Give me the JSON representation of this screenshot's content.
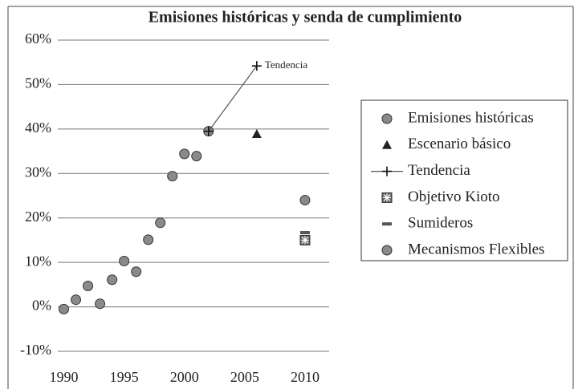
{
  "chart_data": {
    "type": "scatter",
    "title": "Emisiones históricas y senda de cumplimiento",
    "annotation": "Tendencia",
    "xlim": [
      1989.5,
      2012
    ],
    "xticks": [
      1990,
      1995,
      2000,
      2005,
      2010
    ],
    "ylim": [
      -10,
      60
    ],
    "yticks": [
      {
        "value": -10,
        "label": "-10%"
      },
      {
        "value": 0,
        "label": "0%"
      },
      {
        "value": 10,
        "label": "10%"
      },
      {
        "value": 20,
        "label": "20%"
      },
      {
        "value": 30,
        "label": "30%"
      },
      {
        "value": 40,
        "label": "40%"
      },
      {
        "value": 50,
        "label": "50%"
      },
      {
        "value": 60,
        "label": "60%"
      }
    ],
    "grid": true,
    "series": [
      {
        "name": "Emisiones históricas",
        "color": "#8a8a8a",
        "marker": "circle",
        "x": [
          1990,
          1991,
          1992,
          1993,
          1994,
          1995,
          1996,
          1997,
          1998,
          1999,
          2000,
          2001,
          2002
        ],
        "values": [
          -0.5,
          1.6,
          4.7,
          0.7,
          6.1,
          10.3,
          7.9,
          15.1,
          18.9,
          29.4,
          34.4,
          33.9,
          39.5
        ]
      },
      {
        "name": "Escenario básico",
        "color": "#222222",
        "marker": "triangle",
        "x": [
          2006
        ],
        "values": [
          38.9
        ]
      },
      {
        "name": "Tendencia",
        "color": "#555555",
        "marker": "plus",
        "line": true,
        "x": [
          2002,
          2006
        ],
        "values": [
          39.5,
          54.2
        ]
      },
      {
        "name": "Objetivo Kioto",
        "color": "#666666",
        "marker": "boxx",
        "x": [
          2010
        ],
        "values": [
          15
        ]
      },
      {
        "name": "Sumideros",
        "color": "#555555",
        "marker": "dash",
        "x": [
          2010
        ],
        "values": [
          16.7
        ]
      },
      {
        "name": "Mecanismos Flexibles",
        "color": "#8a8a8a",
        "marker": "circle",
        "x": [
          2010
        ],
        "values": [
          24
        ]
      }
    ]
  }
}
